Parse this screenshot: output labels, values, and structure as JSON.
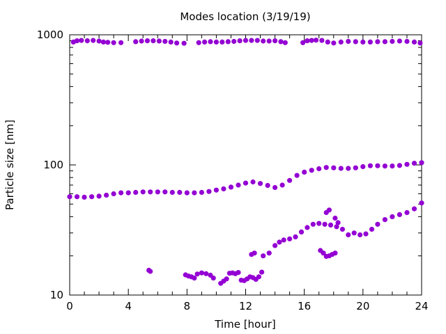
{
  "chart_data": {
    "type": "scatter",
    "title": "Modes location (3/19/19)",
    "xlabel": "Time [hour]",
    "ylabel": "Particle size [nm]",
    "xlim": [
      0,
      24
    ],
    "ylim": [
      10,
      1000
    ],
    "yscale": "log",
    "grid": false,
    "legend": "none",
    "x_ticks": [
      "0",
      "4",
      "8",
      "12",
      "16",
      "20",
      "24"
    ],
    "y_ticks": [
      "10",
      "100",
      "1000"
    ],
    "marker_color": "#9400D3",
    "series": [
      {
        "points": [
          [
            0.25,
            880
          ],
          [
            0.5,
            900
          ],
          [
            0.8,
            905
          ],
          [
            1.2,
            900
          ],
          [
            1.6,
            905
          ],
          [
            2.0,
            895
          ],
          [
            2.3,
            880
          ],
          [
            2.6,
            875
          ],
          [
            3.0,
            870
          ],
          [
            3.5,
            870
          ],
          [
            4.5,
            885
          ],
          [
            4.9,
            895
          ],
          [
            5.3,
            900
          ],
          [
            5.7,
            900
          ],
          [
            6.1,
            895
          ],
          [
            6.5,
            890
          ],
          [
            6.9,
            880
          ],
          [
            7.3,
            865
          ],
          [
            7.8,
            860
          ],
          [
            8.8,
            870
          ],
          [
            9.2,
            880
          ],
          [
            9.6,
            885
          ],
          [
            10.0,
            880
          ],
          [
            10.4,
            880
          ],
          [
            10.8,
            885
          ],
          [
            11.2,
            890
          ],
          [
            11.6,
            900
          ],
          [
            12.0,
            905
          ],
          [
            12.4,
            905
          ],
          [
            12.8,
            905
          ],
          [
            13.2,
            895
          ],
          [
            13.6,
            895
          ],
          [
            14.0,
            900
          ],
          [
            14.4,
            885
          ],
          [
            14.7,
            870
          ],
          [
            15.9,
            870
          ],
          [
            16.2,
            900
          ],
          [
            16.5,
            905
          ],
          [
            16.8,
            910
          ],
          [
            17.2,
            905
          ],
          [
            17.6,
            880
          ],
          [
            18.0,
            865
          ],
          [
            18.5,
            880
          ],
          [
            19.0,
            890
          ],
          [
            19.5,
            885
          ],
          [
            20.0,
            880
          ],
          [
            20.5,
            880
          ],
          [
            21.0,
            885
          ],
          [
            21.5,
            885
          ],
          [
            22.0,
            890
          ],
          [
            22.5,
            895
          ],
          [
            23.0,
            890
          ],
          [
            23.5,
            880
          ],
          [
            23.9,
            865
          ]
        ]
      },
      {
        "points": [
          [
            0.0,
            57
          ],
          [
            0.5,
            57
          ],
          [
            1.0,
            56.5
          ],
          [
            1.5,
            57
          ],
          [
            2.0,
            57.5
          ],
          [
            2.5,
            58.5
          ],
          [
            3.0,
            60
          ],
          [
            3.5,
            61
          ],
          [
            4.0,
            61
          ],
          [
            4.5,
            61.5
          ],
          [
            5.0,
            62
          ],
          [
            5.5,
            62
          ],
          [
            6.0,
            62
          ],
          [
            6.5,
            62
          ],
          [
            7.0,
            61.5
          ],
          [
            7.5,
            61.5
          ],
          [
            8.0,
            61
          ],
          [
            8.5,
            61
          ],
          [
            9.0,
            61.5
          ],
          [
            9.5,
            62.5
          ],
          [
            10.0,
            64
          ],
          [
            10.5,
            65.5
          ],
          [
            11.0,
            67.5
          ],
          [
            11.5,
            70
          ],
          [
            12.0,
            72.5
          ],
          [
            12.5,
            74
          ],
          [
            13.0,
            72
          ],
          [
            13.5,
            69.5
          ],
          [
            14.0,
            67
          ],
          [
            14.5,
            70
          ],
          [
            15.0,
            76
          ],
          [
            15.5,
            83
          ],
          [
            16.0,
            88
          ],
          [
            16.5,
            91
          ],
          [
            17.0,
            93.5
          ],
          [
            17.5,
            95.5
          ],
          [
            18.0,
            95
          ],
          [
            18.5,
            94
          ],
          [
            19.0,
            94
          ],
          [
            19.5,
            95
          ],
          [
            20.0,
            97
          ],
          [
            20.5,
            98.5
          ],
          [
            21.0,
            98.5
          ],
          [
            21.5,
            98
          ],
          [
            22.0,
            98
          ],
          [
            22.5,
            99
          ],
          [
            23.0,
            101
          ],
          [
            23.5,
            103
          ],
          [
            24.0,
            104
          ]
        ]
      },
      {
        "points": [
          [
            5.4,
            15.5
          ],
          [
            5.5,
            15.2
          ],
          [
            7.9,
            14.3
          ],
          [
            8.1,
            14.0
          ],
          [
            8.3,
            13.8
          ],
          [
            8.5,
            13.5
          ],
          [
            8.7,
            14.5
          ],
          [
            9.0,
            14.8
          ],
          [
            9.3,
            14.6
          ],
          [
            9.6,
            14.2
          ],
          [
            9.8,
            13.5
          ],
          [
            10.3,
            12.3
          ],
          [
            10.5,
            12.8
          ],
          [
            10.7,
            13.3
          ],
          [
            10.9,
            14.7
          ],
          [
            11.1,
            14.8
          ],
          [
            11.3,
            14.6
          ],
          [
            11.5,
            14.9
          ],
          [
            11.7,
            13.0
          ],
          [
            11.9,
            12.9
          ],
          [
            12.1,
            13.3
          ],
          [
            12.3,
            13.8
          ],
          [
            12.5,
            13.6
          ],
          [
            12.7,
            13.2
          ],
          [
            12.9,
            13.8
          ],
          [
            13.1,
            15.0
          ],
          [
            12.4,
            20.5
          ],
          [
            12.6,
            21.0
          ],
          [
            13.2,
            20.0
          ],
          [
            13.6,
            21.0
          ],
          [
            14.0,
            24.0
          ],
          [
            14.3,
            25.5
          ],
          [
            14.6,
            26.5
          ],
          [
            15.0,
            27.0
          ],
          [
            15.4,
            28.0
          ],
          [
            15.8,
            30.5
          ],
          [
            16.2,
            33.0
          ],
          [
            16.6,
            35.0
          ],
          [
            17.0,
            35.5
          ],
          [
            17.4,
            35.0
          ],
          [
            17.8,
            34.5
          ],
          [
            18.2,
            33.5
          ],
          [
            18.6,
            32.0
          ],
          [
            19.0,
            29.0
          ],
          [
            19.4,
            30.0
          ],
          [
            19.8,
            29.0
          ],
          [
            20.2,
            29.5
          ],
          [
            20.6,
            32.0
          ],
          [
            21.0,
            35.0
          ],
          [
            21.5,
            38.0
          ],
          [
            22.0,
            40.0
          ],
          [
            22.5,
            41.5
          ],
          [
            23.0,
            43.0
          ],
          [
            23.5,
            46.0
          ],
          [
            24.0,
            51.0
          ],
          [
            17.5,
            43.0
          ],
          [
            17.7,
            45.0
          ],
          [
            18.1,
            39.0
          ],
          [
            18.3,
            36.0
          ],
          [
            17.1,
            22.0
          ],
          [
            17.3,
            21.0
          ],
          [
            17.5,
            19.8
          ],
          [
            17.7,
            20.0
          ],
          [
            17.9,
            20.5
          ],
          [
            18.1,
            21.0
          ]
        ]
      }
    ]
  }
}
